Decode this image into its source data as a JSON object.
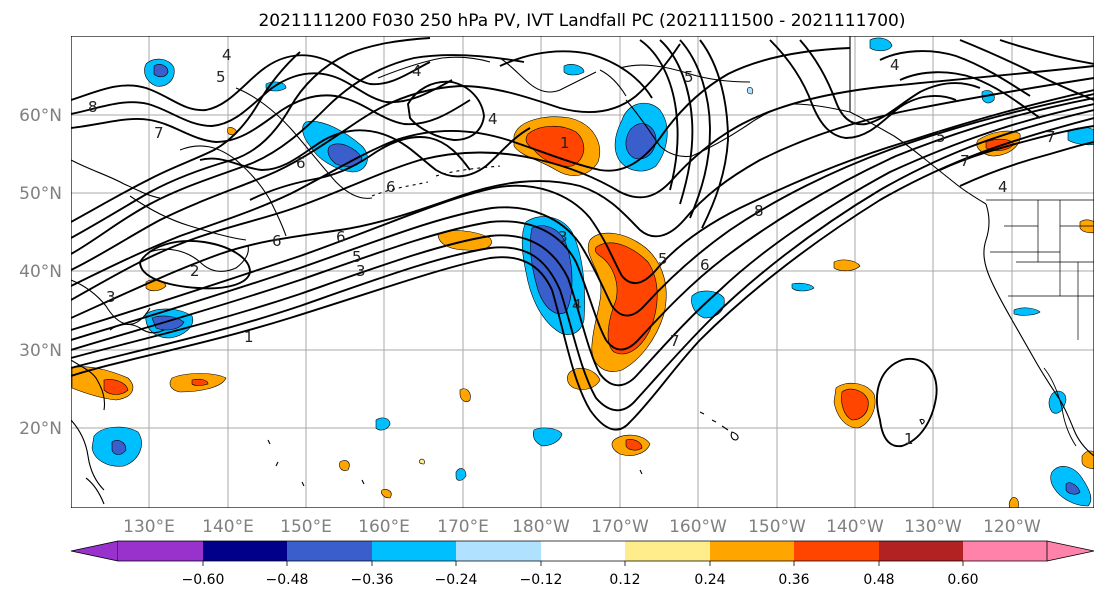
{
  "title": "2021111200 F030 250 hPa PV, IVT Landfall PC (2021111500 - 2021111700)",
  "lat_labels": [
    "60°N",
    "50°N",
    "40°N",
    "30°N",
    "20°N"
  ],
  "lon_labels": [
    "130°E",
    "140°E",
    "150°E",
    "160°E",
    "170°E",
    "180°W",
    "170°W",
    "160°W",
    "150°W",
    "140°W",
    "130°W",
    "120°W"
  ],
  "colorbar": {
    "ticks": [
      "−0.60",
      "−0.48",
      "−0.36",
      "−0.24",
      "−0.12",
      "0.12",
      "0.24",
      "0.36",
      "0.48",
      "0.60"
    ],
    "colors": [
      "#9932cc",
      "#00008b",
      "#3a5fcd",
      "#00bfff",
      "#b0e2ff",
      "#ffffff",
      "#ffec8b",
      "#ffa500",
      "#ff4500",
      "#b22222",
      "#ff82ab"
    ]
  },
  "contour_labels": [
    "4",
    "5",
    "8",
    "7",
    "6",
    "6",
    "6",
    "4",
    "2",
    "3",
    "1",
    "5",
    "3",
    "4",
    "6",
    "1",
    "7",
    "5",
    "8",
    "3",
    "4",
    "5",
    "1",
    "6",
    "4",
    "7",
    "5",
    "4",
    "7"
  ]
}
